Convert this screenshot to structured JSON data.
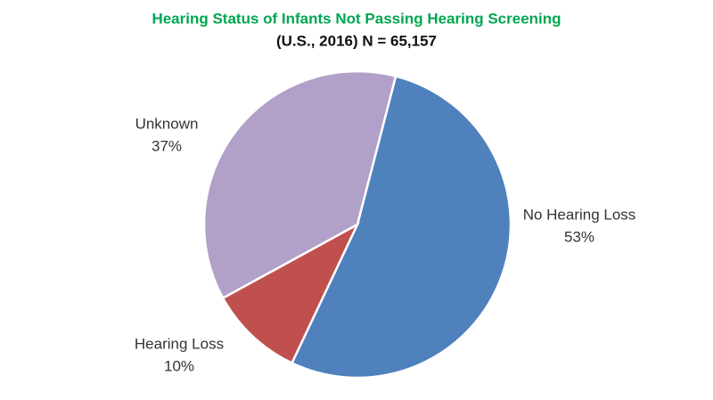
{
  "chart_data": {
    "type": "pie",
    "title": "Hearing Status of Infants Not Passing Hearing Screening",
    "subtitle": "(U.S., 2016) N = 65,157",
    "categories": [
      "No Hearing Loss",
      "Hearing Loss",
      "Unknown"
    ],
    "values": [
      53,
      10,
      37
    ],
    "value_labels": [
      "53%",
      "10%",
      "37%"
    ],
    "colors": [
      "#4f81bd",
      "#c0504d",
      "#b1a0c7"
    ]
  }
}
